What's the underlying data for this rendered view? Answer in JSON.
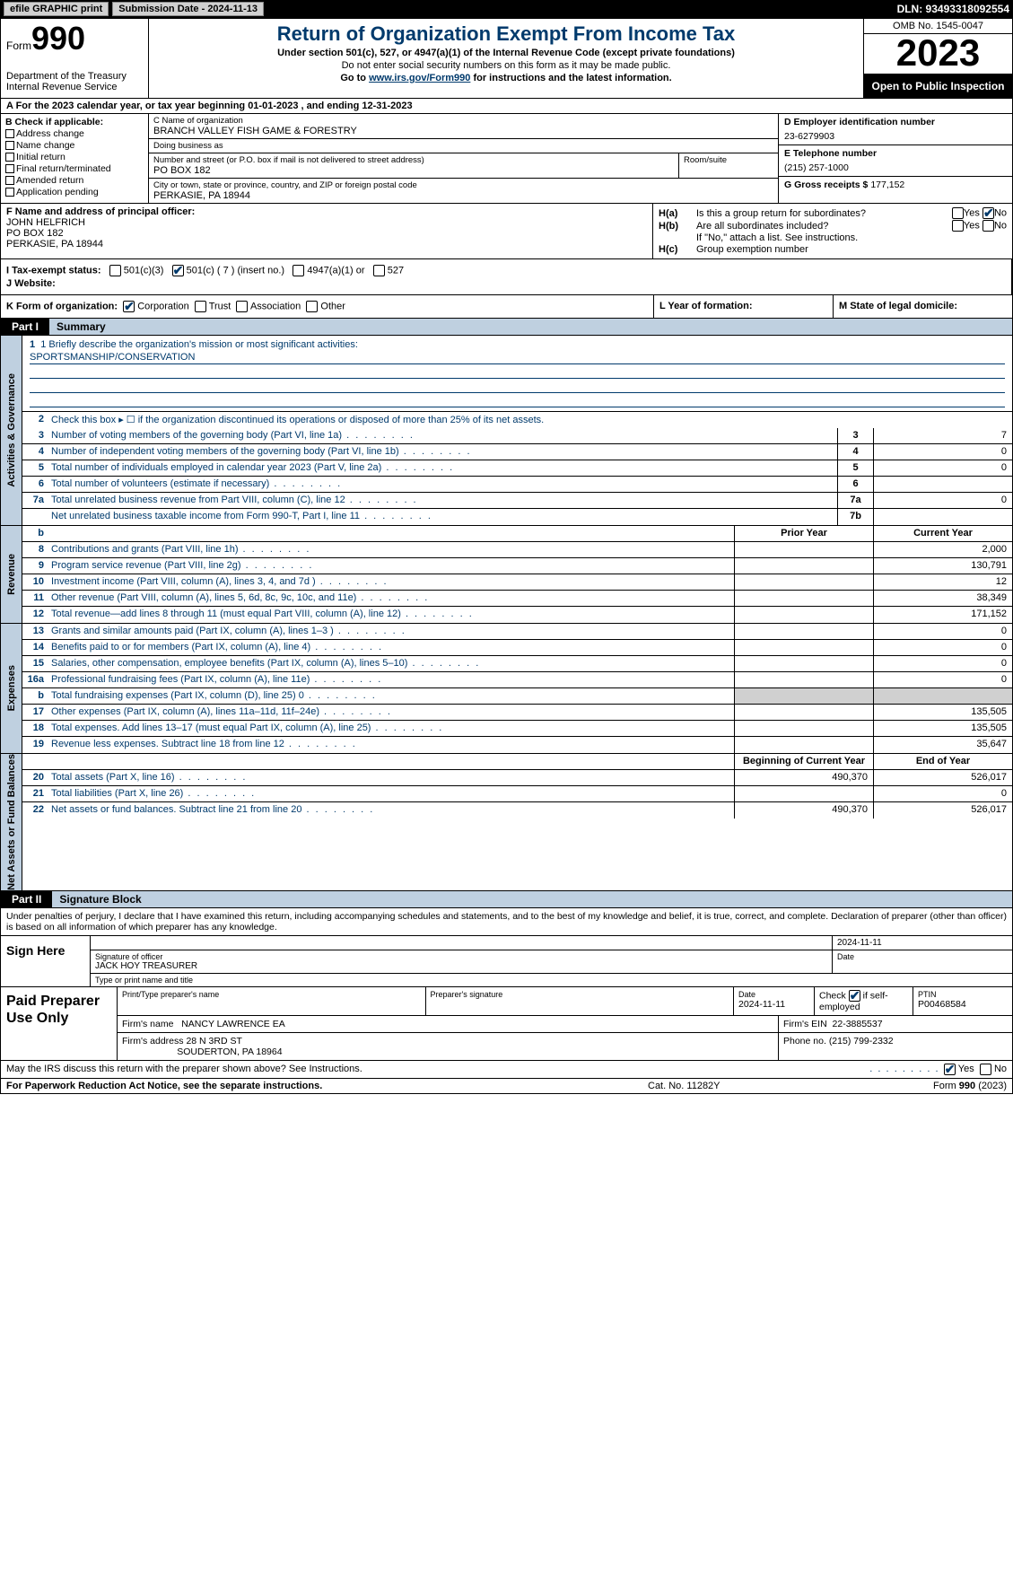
{
  "topbar": {
    "efile": "efile GRAPHIC print",
    "submission": "Submission Date - 2024-11-13",
    "dln": "DLN: 93493318092554"
  },
  "header": {
    "form_label": "Form",
    "form_num": "990",
    "title": "Return of Organization Exempt From Income Tax",
    "sub1": "Under section 501(c), 527, or 4947(a)(1) of the Internal Revenue Code (except private foundations)",
    "sub2": "Do not enter social security numbers on this form as it may be made public.",
    "sub3_pre": "Go to ",
    "sub3_link": "www.irs.gov/Form990",
    "sub3_post": " for instructions and the latest information.",
    "dept": "Department of the Treasury\nInternal Revenue Service",
    "omb": "OMB No. 1545-0047",
    "year": "2023",
    "open": "Open to Public Inspection"
  },
  "rowA": "A   For the 2023 calendar year, or tax year beginning 01-01-2023   , and ending 12-31-2023",
  "colB": {
    "hdr": "B Check if applicable:",
    "items": [
      "Address change",
      "Name change",
      "Initial return",
      "Final return/terminated",
      "Amended return",
      "Application pending"
    ]
  },
  "colC": {
    "name_lbl": "C Name of organization",
    "name": "BRANCH VALLEY FISH GAME & FORESTRY",
    "dba_lbl": "Doing business as",
    "dba": "",
    "addr_lbl": "Number and street (or P.O. box if mail is not delivered to street address)",
    "addr": "PO BOX 182",
    "room_lbl": "Room/suite",
    "room": "",
    "city_lbl": "City or town, state or province, country, and ZIP or foreign postal code",
    "city": "PERKASIE, PA   18944"
  },
  "colD": {
    "ein_lbl": "D Employer identification number",
    "ein": "23-6279903",
    "tel_lbl": "E Telephone number",
    "tel": "(215) 257-1000",
    "gross_lbl": "G Gross receipts $",
    "gross": "177,152"
  },
  "colF": {
    "lbl": "F  Name and address of principal officer:",
    "name": "JOHN HELFRICH",
    "addr1": "PO BOX 182",
    "addr2": "PERKASIE, PA   18944"
  },
  "colH": {
    "a_lbl": "H(a)",
    "a_txt": "Is this a group return for subordinates?",
    "b_lbl": "H(b)",
    "b_txt": "Are all subordinates included?",
    "b_note": "If \"No,\" attach a list. See instructions.",
    "c_lbl": "H(c)",
    "c_txt": "Group exemption number",
    "yes": "Yes",
    "no": "No"
  },
  "rowI": {
    "lbl": "I   Tax-exempt status:",
    "o501c3": "501(c)(3)",
    "o501c": "501(c) ( 7 ) (insert no.)",
    "o4947": "4947(a)(1) or",
    "o527": "527"
  },
  "rowJ": {
    "lbl": "J   Website:",
    "val": ""
  },
  "rowK": {
    "lbl": "K Form of organization:",
    "corp": "Corporation",
    "trust": "Trust",
    "assoc": "Association",
    "other": "Other"
  },
  "rowL": "L Year of formation:",
  "rowM": "M State of legal domicile:",
  "part1": {
    "tab": "Part I",
    "title": "Summary"
  },
  "mission": {
    "lbl": "1   Briefly describe the organization's mission or most significant activities:",
    "val": "SPORTSMANSHIP/CONSERVATION"
  },
  "gov_lines": [
    {
      "n": "2",
      "d": "Check this box ▸ ☐ if the organization discontinued its operations or disposed of more than 25% of its net assets."
    },
    {
      "n": "3",
      "d": "Number of voting members of the governing body (Part VI, line 1a)",
      "bn": "3",
      "bv": "7"
    },
    {
      "n": "4",
      "d": "Number of independent voting members of the governing body (Part VI, line 1b)",
      "bn": "4",
      "bv": "0"
    },
    {
      "n": "5",
      "d": "Total number of individuals employed in calendar year 2023 (Part V, line 2a)",
      "bn": "5",
      "bv": "0"
    },
    {
      "n": "6",
      "d": "Total number of volunteers (estimate if necessary)",
      "bn": "6",
      "bv": ""
    },
    {
      "n": "7a",
      "d": "Total unrelated business revenue from Part VIII, column (C), line 12",
      "bn": "7a",
      "bv": "0"
    },
    {
      "n": "",
      "d": "Net unrelated business taxable income from Form 990-T, Part I, line 11",
      "bn": "7b",
      "bv": ""
    }
  ],
  "rev_hdr": {
    "b": "b",
    "py": "Prior Year",
    "cy": "Current Year"
  },
  "rev_lines": [
    {
      "n": "8",
      "d": "Contributions and grants (Part VIII, line 1h)",
      "py": "",
      "cy": "2,000"
    },
    {
      "n": "9",
      "d": "Program service revenue (Part VIII, line 2g)",
      "py": "",
      "cy": "130,791"
    },
    {
      "n": "10",
      "d": "Investment income (Part VIII, column (A), lines 3, 4, and 7d )",
      "py": "",
      "cy": "12"
    },
    {
      "n": "11",
      "d": "Other revenue (Part VIII, column (A), lines 5, 6d, 8c, 9c, 10c, and 11e)",
      "py": "",
      "cy": "38,349"
    },
    {
      "n": "12",
      "d": "Total revenue—add lines 8 through 11 (must equal Part VIII, column (A), line 12)",
      "py": "",
      "cy": "171,152"
    }
  ],
  "exp_lines": [
    {
      "n": "13",
      "d": "Grants and similar amounts paid (Part IX, column (A), lines 1–3 )",
      "py": "",
      "cy": "0"
    },
    {
      "n": "14",
      "d": "Benefits paid to or for members (Part IX, column (A), line 4)",
      "py": "",
      "cy": "0"
    },
    {
      "n": "15",
      "d": "Salaries, other compensation, employee benefits (Part IX, column (A), lines 5–10)",
      "py": "",
      "cy": "0"
    },
    {
      "n": "16a",
      "d": "Professional fundraising fees (Part IX, column (A), line 11e)",
      "py": "",
      "cy": "0"
    },
    {
      "n": "b",
      "d": "Total fundraising expenses (Part IX, column (D), line 25) 0",
      "py": "grey",
      "cy": "grey"
    },
    {
      "n": "17",
      "d": "Other expenses (Part IX, column (A), lines 11a–11d, 11f–24e)",
      "py": "",
      "cy": "135,505"
    },
    {
      "n": "18",
      "d": "Total expenses. Add lines 13–17 (must equal Part IX, column (A), line 25)",
      "py": "",
      "cy": "135,505"
    },
    {
      "n": "19",
      "d": "Revenue less expenses. Subtract line 18 from line 12",
      "py": "",
      "cy": "35,647"
    }
  ],
  "na_hdr": {
    "py": "Beginning of Current Year",
    "cy": "End of Year"
  },
  "na_lines": [
    {
      "n": "20",
      "d": "Total assets (Part X, line 16)",
      "py": "490,370",
      "cy": "526,017"
    },
    {
      "n": "21",
      "d": "Total liabilities (Part X, line 26)",
      "py": "",
      "cy": "0"
    },
    {
      "n": "22",
      "d": "Net assets or fund balances. Subtract line 21 from line 20",
      "py": "490,370",
      "cy": "526,017"
    }
  ],
  "vtabs": {
    "gov": "Activities & Governance",
    "rev": "Revenue",
    "exp": "Expenses",
    "na": "Net Assets or Fund Balances"
  },
  "part2": {
    "tab": "Part II",
    "title": "Signature Block"
  },
  "sig": {
    "decl": "Under penalties of perjury, I declare that I have examined this return, including accompanying schedules and statements, and to the best of my knowledge and belief, it is true, correct, and complete. Declaration of preparer (other than officer) is based on all information of which preparer has any knowledge.",
    "sign_here": "Sign Here",
    "sig_of_officer": "Signature of officer",
    "officer": "JACK HOY  TREASURER",
    "type_lbl": "Type or print name and title",
    "date_lbl": "Date",
    "date": "2024-11-11"
  },
  "prep": {
    "lbl": "Paid Preparer Use Only",
    "print_lbl": "Print/Type preparer's name",
    "print_val": "",
    "sig_lbl": "Preparer's signature",
    "date_lbl": "Date",
    "date": "2024-11-11",
    "check_lbl": "Check ",
    "check_post": " if self-employed",
    "ptin_lbl": "PTIN",
    "ptin": "P00468584",
    "firm_name_lbl": "Firm's name",
    "firm_name": "NANCY LAWRENCE EA",
    "firm_ein_lbl": "Firm's EIN",
    "firm_ein": "22-3885537",
    "firm_addr_lbl": "Firm's address",
    "firm_addr1": "28 N 3RD ST",
    "firm_addr2": "SOUDERTON, PA   18964",
    "phone_lbl": "Phone no.",
    "phone": "(215) 799-2332"
  },
  "may_irs": {
    "txt": "May the IRS discuss this return with the preparer shown above? See Instructions.",
    "yes": "Yes",
    "no": "No"
  },
  "footer": {
    "l": "For Paperwork Reduction Act Notice, see the separate instructions.",
    "c": "Cat. No. 11282Y",
    "r_pre": "Form ",
    "r_b": "990",
    "r_post": " (2023)"
  }
}
